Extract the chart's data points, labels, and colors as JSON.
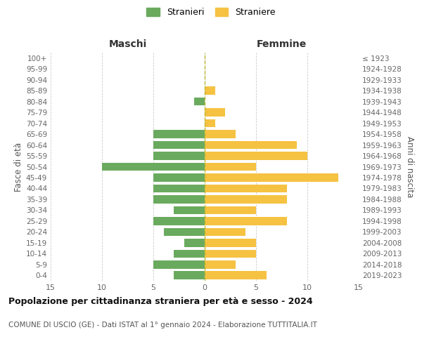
{
  "age_groups": [
    "0-4",
    "5-9",
    "10-14",
    "15-19",
    "20-24",
    "25-29",
    "30-34",
    "35-39",
    "40-44",
    "45-49",
    "50-54",
    "55-59",
    "60-64",
    "65-69",
    "70-74",
    "75-79",
    "80-84",
    "85-89",
    "90-94",
    "95-99",
    "100+"
  ],
  "birth_years": [
    "2019-2023",
    "2014-2018",
    "2009-2013",
    "2004-2008",
    "1999-2003",
    "1994-1998",
    "1989-1993",
    "1984-1988",
    "1979-1983",
    "1974-1978",
    "1969-1973",
    "1964-1968",
    "1959-1963",
    "1954-1958",
    "1949-1953",
    "1944-1948",
    "1939-1943",
    "1934-1938",
    "1929-1933",
    "1924-1928",
    "≤ 1923"
  ],
  "maschi": [
    3,
    5,
    3,
    2,
    4,
    5,
    3,
    5,
    5,
    5,
    10,
    5,
    5,
    5,
    0,
    0,
    1,
    0,
    0,
    0,
    0
  ],
  "femmine": [
    6,
    3,
    5,
    5,
    4,
    8,
    5,
    8,
    8,
    13,
    5,
    10,
    9,
    3,
    1,
    2,
    0,
    1,
    0,
    0,
    0
  ],
  "maschi_color": "#6aaa5e",
  "femmine_color": "#f5c242",
  "title": "Popolazione per cittadinanza straniera per età e sesso - 2024",
  "subtitle": "COMUNE DI USCIO (GE) - Dati ISTAT al 1° gennaio 2024 - Elaborazione TUTTITALIA.IT",
  "ylabel_left": "Fasce di età",
  "ylabel_right": "Anni di nascita",
  "xlabel_left": "Maschi",
  "xlabel_right": "Femmine",
  "xlim": 15,
  "legend_stranieri": "Stranieri",
  "legend_straniere": "Straniere",
  "background_color": "#ffffff",
  "grid_color": "#cccccc"
}
